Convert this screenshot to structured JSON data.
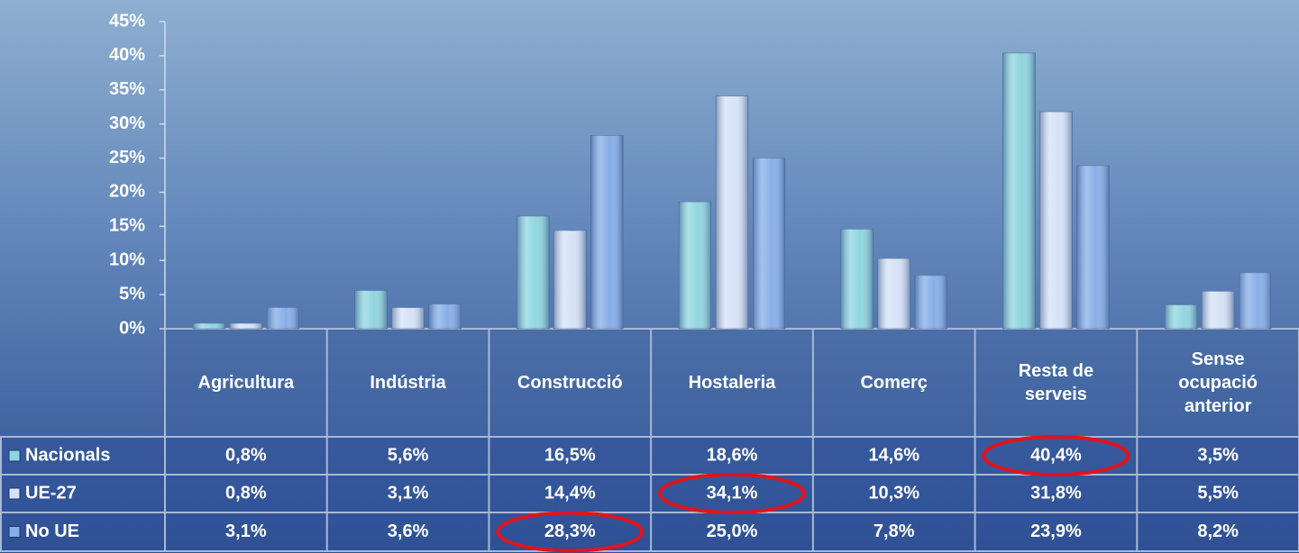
{
  "chart_data": {
    "type": "bar",
    "categories": [
      "Agricultura",
      "Indústria",
      "Construcció",
      "Hostaleria",
      "Comerç",
      "Resta de serveis",
      "Sense ocupació anterior"
    ],
    "series": [
      {
        "name": "Nacionals",
        "color": "#8fd6df",
        "values": [
          0.8,
          5.6,
          16.5,
          18.6,
          14.6,
          40.4,
          3.5
        ],
        "value_labels": [
          "0,8%",
          "5,6%",
          "16,5%",
          "18,6%",
          "14,6%",
          "40,4%",
          "3,5%"
        ]
      },
      {
        "name": "UE-27",
        "color": "#d6e2f6",
        "values": [
          0.8,
          3.1,
          14.4,
          34.1,
          10.3,
          31.8,
          5.5
        ],
        "value_labels": [
          "0,8%",
          "3,1%",
          "14,4%",
          "34,1%",
          "10,3%",
          "31,8%",
          "5,5%"
        ]
      },
      {
        "name": "No UE",
        "color": "#86aee8",
        "values": [
          3.1,
          3.6,
          28.3,
          25.0,
          7.8,
          23.9,
          8.2
        ],
        "value_labels": [
          "3,1%",
          "3,6%",
          "28,3%",
          "25,0%",
          "7,8%",
          "23,9%",
          "8,2%"
        ]
      }
    ],
    "ylim": [
      0,
      45
    ],
    "yticks": [
      {
        "value": 0,
        "label": "0%"
      },
      {
        "value": 5,
        "label": "5%"
      },
      {
        "value": 10,
        "label": "10%"
      },
      {
        "value": 15,
        "label": "15%"
      },
      {
        "value": 20,
        "label": "20%"
      },
      {
        "value": 25,
        "label": "25%"
      },
      {
        "value": 30,
        "label": "30%"
      },
      {
        "value": 35,
        "label": "35%"
      },
      {
        "value": 40,
        "label": "40%"
      },
      {
        "value": 45,
        "label": "45%"
      }
    ],
    "grid": false
  }
}
